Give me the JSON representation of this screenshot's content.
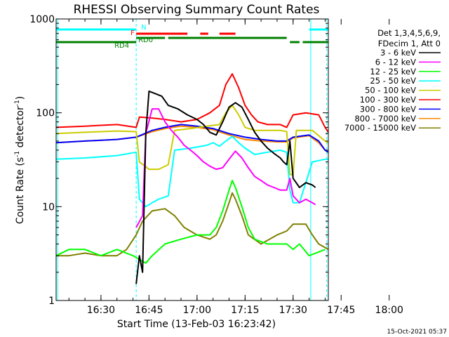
{
  "chart_data": {
    "type": "line",
    "title": "RHESSI Observing Summary Count Rates",
    "xlabel": "Start Time (13-Feb-03 16:23:42)",
    "ylabel": "Count Rate (s⁻¹ detector⁻¹)",
    "ylabel_base": "Count Rate (s",
    "ylabel_mid": " detector",
    "ylabel_end": ")",
    "ylabel_sup": "-1",
    "yscale": "log",
    "ylim": [
      1,
      1000
    ],
    "xlim_minutes": [
      16.0,
      101.0
    ],
    "x_ticks": [
      {
        "minute": 30,
        "label": "16:30"
      },
      {
        "minute": 45,
        "label": "16:45"
      },
      {
        "minute": 60,
        "label": "17:00"
      },
      {
        "minute": 75,
        "label": "17:15"
      },
      {
        "minute": 90,
        "label": "17:30"
      },
      {
        "minute": 105,
        "label": "17:45"
      },
      {
        "minute": 120,
        "label": "18:00"
      }
    ],
    "y_ticks": [
      {
        "value": 1,
        "label": "1"
      },
      {
        "value": 10,
        "label": "10"
      },
      {
        "value": 100,
        "label": "100"
      },
      {
        "value": 1000,
        "label": "1000"
      }
    ],
    "x_axis_note": "x values are minutes after 16:00 UT",
    "legend": {
      "header1": "Det 1,3,4,5,6,9,",
      "header2": "FDecim 1, Att 0",
      "position": "right"
    },
    "series": [
      {
        "name": "3 - 6 keV",
        "color": "#000000",
        "points": [
          [
            41,
            1.5
          ],
          [
            42,
            3
          ],
          [
            43,
            2
          ],
          [
            44,
            60
          ],
          [
            45,
            170
          ],
          [
            47,
            160
          ],
          [
            49,
            150
          ],
          [
            51,
            120
          ],
          [
            54,
            110
          ],
          [
            57,
            95
          ],
          [
            60,
            85
          ],
          [
            62,
            75
          ],
          [
            64,
            62
          ],
          [
            66,
            58
          ],
          [
            68,
            80
          ],
          [
            70,
            115
          ],
          [
            72,
            128
          ],
          [
            74,
            115
          ],
          [
            76,
            85
          ],
          [
            78,
            62
          ],
          [
            80,
            50
          ],
          [
            82,
            42
          ],
          [
            84,
            37
          ],
          [
            86,
            33
          ],
          [
            87,
            30
          ],
          [
            88,
            28
          ],
          [
            89,
            50
          ],
          [
            90,
            20
          ],
          [
            92,
            16
          ],
          [
            94,
            18
          ],
          [
            96,
            17
          ],
          [
            97,
            16
          ]
        ]
      },
      {
        "name": "6 - 12 keV",
        "color": "#ff00ff",
        "points": [
          [
            41,
            6
          ],
          [
            43,
            8
          ],
          [
            44,
            60
          ],
          [
            46,
            110
          ],
          [
            48,
            110
          ],
          [
            50,
            80
          ],
          [
            52,
            65
          ],
          [
            54,
            55
          ],
          [
            56,
            45
          ],
          [
            58,
            40
          ],
          [
            60,
            35
          ],
          [
            62,
            30
          ],
          [
            64,
            27
          ],
          [
            66,
            25
          ],
          [
            68,
            26
          ],
          [
            70,
            32
          ],
          [
            72,
            39
          ],
          [
            74,
            33
          ],
          [
            76,
            26
          ],
          [
            78,
            21
          ],
          [
            80,
            19
          ],
          [
            82,
            17
          ],
          [
            84,
            16
          ],
          [
            86,
            15
          ],
          [
            88,
            15
          ],
          [
            89,
            20
          ],
          [
            90,
            13
          ],
          [
            92,
            11
          ],
          [
            94,
            12
          ],
          [
            96,
            11
          ],
          [
            97,
            10.5
          ]
        ]
      },
      {
        "name": "12 - 25 keV",
        "color": "#00ff00",
        "points": [
          [
            16,
            3
          ],
          [
            20,
            3.5
          ],
          [
            25,
            3.5
          ],
          [
            30,
            3
          ],
          [
            35,
            3.5
          ],
          [
            40,
            3
          ],
          [
            44,
            2.5
          ],
          [
            46,
            3
          ],
          [
            50,
            4
          ],
          [
            55,
            4.5
          ],
          [
            60,
            5
          ],
          [
            64,
            5
          ],
          [
            66,
            6
          ],
          [
            68,
            9
          ],
          [
            70,
            15
          ],
          [
            71,
            19
          ],
          [
            72,
            16
          ],
          [
            74,
            10
          ],
          [
            76,
            6
          ],
          [
            78,
            4.5
          ],
          [
            82,
            4
          ],
          [
            88,
            4
          ],
          [
            90,
            3.5
          ],
          [
            92,
            4
          ],
          [
            95,
            3
          ],
          [
            100,
            3.5
          ]
        ]
      },
      {
        "name": "25 - 50 keV",
        "color": "#00ffff",
        "points": [
          [
            16,
            32
          ],
          [
            25,
            33
          ],
          [
            35,
            35
          ],
          [
            41,
            38
          ],
          [
            42,
            12
          ],
          [
            44,
            10
          ],
          [
            46,
            11
          ],
          [
            48,
            12
          ],
          [
            51,
            13
          ],
          [
            53,
            40
          ],
          [
            58,
            42
          ],
          [
            63,
            45
          ],
          [
            65,
            48
          ],
          [
            67,
            44
          ],
          [
            69,
            50
          ],
          [
            71,
            56
          ],
          [
            73,
            48
          ],
          [
            75,
            42
          ],
          [
            78,
            36
          ],
          [
            82,
            38
          ],
          [
            86,
            40
          ],
          [
            88,
            38
          ],
          [
            89,
            15
          ],
          [
            90,
            11
          ],
          [
            92,
            11
          ],
          [
            96,
            30
          ],
          [
            100,
            32
          ],
          [
            101,
            32
          ]
        ]
      },
      {
        "name": "50 - 100 keV",
        "color": "#cccc00",
        "points": [
          [
            16,
            60
          ],
          [
            25,
            62
          ],
          [
            35,
            64
          ],
          [
            41,
            63
          ],
          [
            42,
            30
          ],
          [
            45,
            25
          ],
          [
            48,
            25
          ],
          [
            51,
            28
          ],
          [
            53,
            65
          ],
          [
            58,
            68
          ],
          [
            63,
            72
          ],
          [
            67,
            75
          ],
          [
            69,
            100
          ],
          [
            71,
            120
          ],
          [
            73,
            95
          ],
          [
            75,
            70
          ],
          [
            78,
            65
          ],
          [
            86,
            65
          ],
          [
            88,
            63
          ],
          [
            89,
            22
          ],
          [
            90,
            22
          ],
          [
            91,
            65
          ],
          [
            96,
            65
          ],
          [
            100,
            50
          ],
          [
            101,
            48
          ]
        ]
      },
      {
        "name": "100 - 300 keV",
        "color": "#ff0000",
        "points": [
          [
            16,
            70
          ],
          [
            25,
            72
          ],
          [
            35,
            75
          ],
          [
            41,
            70
          ],
          [
            42,
            90
          ],
          [
            46,
            88
          ],
          [
            50,
            85
          ],
          [
            55,
            80
          ],
          [
            60,
            85
          ],
          [
            64,
            100
          ],
          [
            67,
            120
          ],
          [
            69,
            200
          ],
          [
            71,
            260
          ],
          [
            73,
            185
          ],
          [
            75,
            120
          ],
          [
            77,
            95
          ],
          [
            79,
            80
          ],
          [
            82,
            75
          ],
          [
            86,
            75
          ],
          [
            88,
            70
          ],
          [
            90,
            95
          ],
          [
            94,
            100
          ],
          [
            98,
            95
          ],
          [
            100,
            70
          ],
          [
            101,
            62
          ]
        ]
      },
      {
        "name": "300 - 800 keV",
        "color": "#0000ff",
        "points": [
          [
            16,
            48
          ],
          [
            25,
            50
          ],
          [
            35,
            52
          ],
          [
            41,
            55
          ],
          [
            46,
            65
          ],
          [
            50,
            70
          ],
          [
            55,
            75
          ],
          [
            60,
            72
          ],
          [
            65,
            68
          ],
          [
            70,
            60
          ],
          [
            75,
            55
          ],
          [
            80,
            52
          ],
          [
            85,
            50
          ],
          [
            88,
            50
          ],
          [
            90,
            55
          ],
          [
            95,
            58
          ],
          [
            98,
            50
          ],
          [
            100,
            40
          ],
          [
            101,
            38
          ]
        ]
      },
      {
        "name": "800 - 7000 keV",
        "color": "#ff8800",
        "points": [
          [
            16,
            48
          ],
          [
            25,
            50
          ],
          [
            35,
            52
          ],
          [
            41,
            55
          ],
          [
            46,
            63
          ],
          [
            50,
            68
          ],
          [
            55,
            72
          ],
          [
            60,
            70
          ],
          [
            65,
            66
          ],
          [
            70,
            58
          ],
          [
            75,
            52
          ],
          [
            80,
            50
          ],
          [
            85,
            49
          ],
          [
            88,
            49
          ],
          [
            90,
            54
          ],
          [
            95,
            57
          ],
          [
            98,
            48
          ],
          [
            100,
            40
          ],
          [
            101,
            38
          ]
        ]
      },
      {
        "name": "7000 - 15000 keV",
        "color": "#808000",
        "points": [
          [
            16,
            3
          ],
          [
            20,
            3
          ],
          [
            25,
            3.2
          ],
          [
            30,
            3
          ],
          [
            35,
            3
          ],
          [
            38,
            3.5
          ],
          [
            41,
            5
          ],
          [
            43,
            7
          ],
          [
            46,
            9
          ],
          [
            50,
            9.5
          ],
          [
            53,
            8
          ],
          [
            56,
            6
          ],
          [
            60,
            5
          ],
          [
            64,
            4.5
          ],
          [
            66,
            5
          ],
          [
            68,
            7
          ],
          [
            70,
            11
          ],
          [
            71,
            14
          ],
          [
            72,
            12
          ],
          [
            74,
            8
          ],
          [
            76,
            5
          ],
          [
            80,
            4
          ],
          [
            85,
            5
          ],
          [
            88,
            5.5
          ],
          [
            90,
            6.5
          ],
          [
            94,
            6.5
          ],
          [
            96,
            5
          ],
          [
            98,
            4
          ],
          [
            101,
            3.5
          ]
        ]
      }
    ],
    "flag_bars": [
      {
        "label": "N",
        "color": "#00ffff",
        "segments": [
          [
            16,
            41
          ],
          [
            95,
            101
          ]
        ]
      },
      {
        "label": "F",
        "color": "#ff0000",
        "segments": [
          [
            41,
            57
          ],
          [
            61,
            63.5
          ],
          [
            67,
            72
          ]
        ]
      },
      {
        "label": "RD0",
        "color": "#008000",
        "segments": [
          [
            41,
            50
          ],
          [
            51,
            88
          ]
        ]
      },
      {
        "label": "RD4",
        "color": "#008000",
        "segments": [
          [
            16,
            41
          ],
          [
            89,
            92
          ],
          [
            93,
            101
          ]
        ]
      }
    ],
    "vertical_markers": [
      {
        "minute": 16.5,
        "style": "solid",
        "color": "#00ffff"
      },
      {
        "minute": 41.0,
        "style": "dashed",
        "color": "#00ffff"
      },
      {
        "minute": 95.5,
        "style": "solid",
        "color": "#00ffff"
      },
      {
        "minute": 100.5,
        "style": "dashed",
        "color": "#00ffff"
      }
    ]
  },
  "footer": {
    "timestamp": "15-Oct-2021 05:37"
  }
}
